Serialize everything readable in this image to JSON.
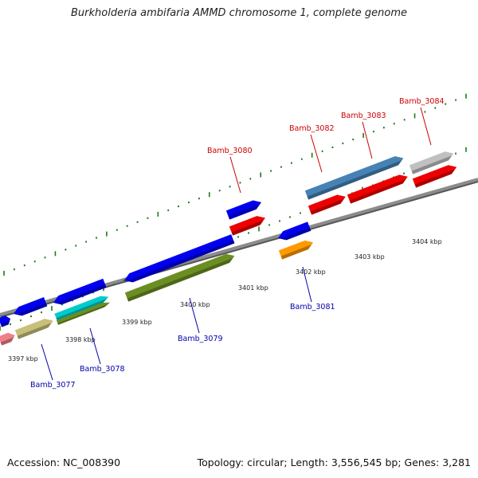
{
  "title": "Burkholderia ambifaria AMMD chromosome 1, complete genome",
  "footer": {
    "accession": "Accession: NC_008390",
    "topology": "Topology: circular; Length: 3,556,545 bp; Genes: 3,281"
  },
  "colors": {
    "backbone": "#8c8c8c",
    "tick": "#1a7a1a",
    "label_top": "#cc0000",
    "label_bottom": "#0000aa",
    "kbp_text": "#222222"
  },
  "kbp_labels": [
    "3397 kbp",
    "3398 kbp",
    "3399 kbp",
    "3400 kbp",
    "3401 kbp",
    "3402 kbp",
    "3403 kbp",
    "3404 kbp"
  ],
  "gene_labels_top": [
    "Bamb_3080",
    "Bamb_3082",
    "Bamb_3083",
    "Bamb_3084"
  ],
  "gene_labels_bottom": [
    "Bamb_3077",
    "Bamb_3078",
    "Bamb_3079",
    "Bamb_3081"
  ],
  "features": [
    {
      "name": "feat-blue-a",
      "color": "#0000ee"
    },
    {
      "name": "feat-blue-b",
      "color": "#0000ee"
    },
    {
      "name": "feat-blue-c",
      "color": "#0000ee"
    },
    {
      "name": "feat-blue-d",
      "color": "#0000ee"
    },
    {
      "name": "feat-blue-e",
      "color": "#0000ee"
    },
    {
      "name": "feat-blue-f",
      "color": "#0000ee"
    },
    {
      "name": "feat-pink",
      "color": "#f07f8a"
    },
    {
      "name": "feat-khaki",
      "color": "#c8c07a"
    },
    {
      "name": "feat-cyan",
      "color": "#00cccc"
    },
    {
      "name": "feat-olive-a",
      "color": "#6b8e23"
    },
    {
      "name": "feat-olive-b",
      "color": "#6b8e23"
    },
    {
      "name": "feat-red-a",
      "color": "#ee0000"
    },
    {
      "name": "feat-orange",
      "color": "#ff9900"
    },
    {
      "name": "feat-steelblue",
      "color": "#4682b4"
    },
    {
      "name": "feat-red-b",
      "color": "#ee0000"
    },
    {
      "name": "feat-red-c",
      "color": "#ee0000"
    },
    {
      "name": "feat-red-d",
      "color": "#ee0000"
    },
    {
      "name": "feat-grey",
      "color": "#c0c0c0"
    }
  ]
}
